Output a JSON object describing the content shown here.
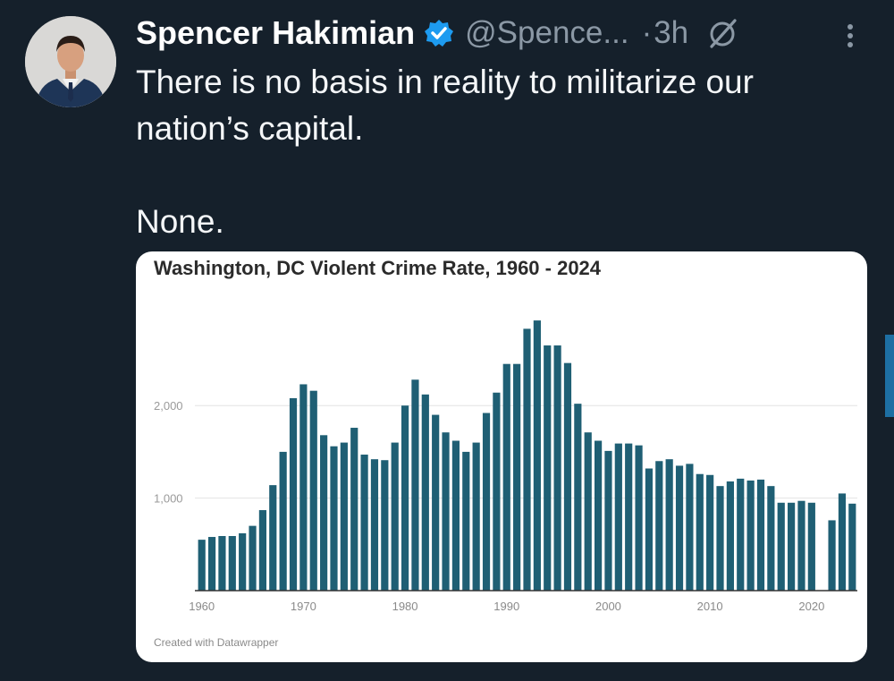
{
  "tweet": {
    "author_name": "Spencer Hakimian",
    "handle": "@Spence...",
    "separator": "·",
    "time": "3h",
    "text_lines": [
      "There is no basis in reality to militarize our nation’s capital.",
      "None."
    ]
  },
  "icons": {
    "verified": "verified-badge-icon",
    "grok": "grok-icon",
    "more": "more-options-icon"
  },
  "colors": {
    "background": "#15202b",
    "verified": "#1d9bf0",
    "bar": "#1f5f74"
  },
  "chart_credit": "Created with Datawrapper",
  "chart_data": {
    "type": "bar",
    "title": "Washington, DC Violent Crime Rate, 1960 - 2024",
    "xlabel": "",
    "ylabel": "",
    "ylim": [
      0,
      2950
    ],
    "yticks": [
      1000,
      2000
    ],
    "ytick_labels": [
      "1,000",
      "2,000"
    ],
    "xticks": [
      1960,
      1970,
      1980,
      1990,
      2000,
      2010,
      2020
    ],
    "grid": true,
    "categories": [
      1960,
      1961,
      1962,
      1963,
      1964,
      1965,
      1966,
      1967,
      1968,
      1969,
      1970,
      1971,
      1972,
      1973,
      1974,
      1975,
      1976,
      1977,
      1978,
      1979,
      1980,
      1981,
      1982,
      1983,
      1984,
      1985,
      1986,
      1987,
      1988,
      1989,
      1990,
      1991,
      1992,
      1993,
      1994,
      1995,
      1996,
      1997,
      1998,
      1999,
      2000,
      2001,
      2002,
      2003,
      2004,
      2005,
      2006,
      2007,
      2008,
      2009,
      2010,
      2011,
      2012,
      2013,
      2014,
      2015,
      2016,
      2017,
      2018,
      2019,
      2020,
      2021,
      2022,
      2023,
      2024
    ],
    "values": [
      550,
      580,
      590,
      590,
      620,
      700,
      870,
      1140,
      1500,
      2080,
      2230,
      2160,
      1680,
      1560,
      1600,
      1760,
      1470,
      1420,
      1410,
      1600,
      2000,
      2280,
      2120,
      1900,
      1710,
      1620,
      1500,
      1600,
      1920,
      2140,
      2450,
      2450,
      2830,
      2920,
      2650,
      2650,
      2460,
      2020,
      1710,
      1620,
      1510,
      1590,
      1590,
      1570,
      1320,
      1400,
      1420,
      1350,
      1370,
      1260,
      1250,
      1130,
      1180,
      1210,
      1190,
      1200,
      1130,
      950,
      950,
      970,
      950,
      0,
      760,
      1050,
      940
    ]
  }
}
